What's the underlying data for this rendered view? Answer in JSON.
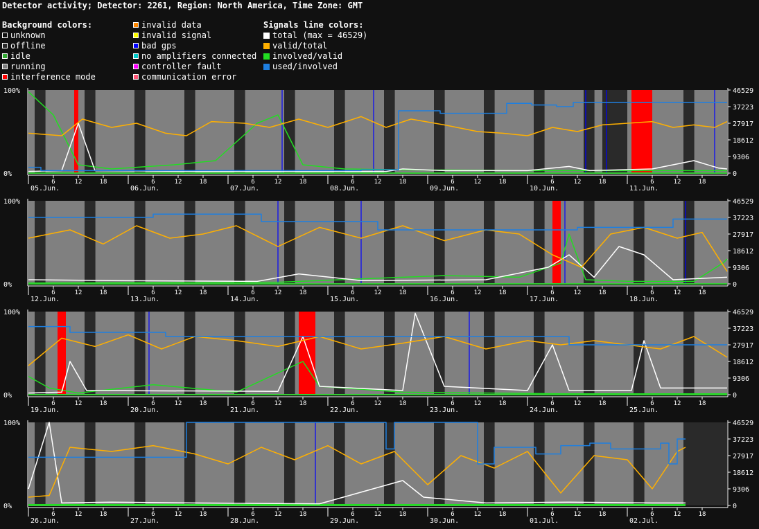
{
  "title": "Detector activity; Detector: 2261, Region: North America, Time Zone: GMT",
  "legend": {
    "background_header": "Background colors:",
    "signals_header": "Signals line colors:",
    "background_col1": [
      {
        "label": "unknown",
        "color": "#111111"
      },
      {
        "label": "offline",
        "color": "#2a2a2a"
      },
      {
        "label": "idle",
        "color": "#33aa33"
      },
      {
        "label": "running",
        "color": "#808080"
      },
      {
        "label": "interference mode",
        "color": "#ff0000"
      }
    ],
    "background_col2": [
      {
        "label": "invalid data",
        "color": "#ff8800"
      },
      {
        "label": "invalid signal",
        "color": "#ffff00"
      },
      {
        "label": "bad gps",
        "color": "#0000ff"
      },
      {
        "label": "no amplifiers connected",
        "color": "#00cccc"
      },
      {
        "label": "controller fault",
        "color": "#ff00ff"
      },
      {
        "label": "communication error",
        "color": "#ff5577"
      }
    ],
    "signals": [
      {
        "label": "total (max = 46529)",
        "color": "#ffffff"
      },
      {
        "label": "valid/total",
        "color": "#ffb000"
      },
      {
        "label": "involved/valid",
        "color": "#22dd22"
      },
      {
        "label": "used/involved",
        "color": "#1e7fe0"
      }
    ]
  },
  "chart_data": {
    "type": "line",
    "y_left_ticks": [
      "100%",
      "0%"
    ],
    "y_right_ticks": [
      "46529",
      "37223",
      "27917",
      "18612",
      "9306",
      "0"
    ],
    "hour_ticks": [
      "6",
      "12",
      "18"
    ],
    "colors": {
      "total": "#ffffff",
      "valid_total": "#ffb000",
      "involved_valid": "#22dd22",
      "used_involved": "#1e7fe0",
      "running": "#808080",
      "offline": "#2a2a2a",
      "interference": "#ff0000",
      "bad_gps": "#0000ff"
    },
    "panels": [
      {
        "days": [
          "05.Jun.",
          "06.Jun.",
          "07.Jun.",
          "08.Jun.",
          "09.Jun.",
          "10.Jun.",
          "11.Jun."
        ],
        "hours": 168,
        "used_involved": [
          [
            0,
            7
          ],
          [
            3,
            7
          ],
          [
            3,
            3
          ],
          [
            80,
            3
          ],
          [
            80,
            4
          ],
          [
            89,
            4
          ],
          [
            89,
            75
          ],
          [
            99,
            75
          ],
          [
            99,
            72
          ],
          [
            115,
            72
          ],
          [
            115,
            84
          ],
          [
            121,
            84
          ],
          [
            121,
            82
          ],
          [
            127,
            82
          ],
          [
            127,
            80
          ],
          [
            131,
            80
          ],
          [
            131,
            85
          ],
          [
            168,
            85
          ]
        ],
        "valid_total": [
          [
            0,
            48
          ],
          [
            8,
            45
          ],
          [
            13,
            65
          ],
          [
            20,
            55
          ],
          [
            26,
            60
          ],
          [
            33,
            48
          ],
          [
            38,
            45
          ],
          [
            44,
            62
          ],
          [
            52,
            60
          ],
          [
            58,
            55
          ],
          [
            65,
            65
          ],
          [
            72,
            55
          ],
          [
            80,
            68
          ],
          [
            86,
            55
          ],
          [
            92,
            65
          ],
          [
            100,
            58
          ],
          [
            108,
            50
          ],
          [
            114,
            48
          ],
          [
            120,
            45
          ],
          [
            126,
            55
          ],
          [
            132,
            50
          ],
          [
            138,
            58
          ],
          [
            144,
            60
          ],
          [
            150,
            62
          ],
          [
            155,
            55
          ],
          [
            160,
            58
          ],
          [
            165,
            55
          ],
          [
            168,
            62
          ]
        ],
        "total": [
          [
            0,
            2
          ],
          [
            8,
            3
          ],
          [
            12,
            60
          ],
          [
            16,
            3
          ],
          [
            40,
            2
          ],
          [
            70,
            2
          ],
          [
            86,
            2
          ],
          [
            90,
            5
          ],
          [
            100,
            3
          ],
          [
            120,
            3
          ],
          [
            130,
            8
          ],
          [
            135,
            3
          ],
          [
            150,
            5
          ],
          [
            160,
            15
          ],
          [
            166,
            6
          ],
          [
            168,
            5
          ]
        ],
        "involved_valid": [
          [
            0,
            98
          ],
          [
            6,
            70
          ],
          [
            12,
            10
          ],
          [
            20,
            5
          ],
          [
            35,
            10
          ],
          [
            45,
            15
          ],
          [
            55,
            60
          ],
          [
            60,
            70
          ],
          [
            66,
            10
          ],
          [
            76,
            5
          ],
          [
            90,
            4
          ],
          [
            120,
            3
          ],
          [
            168,
            3
          ]
        ],
        "interference": [
          [
            11,
            1
          ],
          [
            145,
            5
          ]
        ],
        "offline": [
          [
            138,
            6
          ]
        ],
        "bad_gps": [
          61,
          83,
          134,
          139,
          165
        ]
      },
      {
        "days": [
          "12.Jun.",
          "13.Jun.",
          "14.Jun.",
          "15.Jun.",
          "16.Jun.",
          "17.Jun.",
          "18.Jun."
        ],
        "hours": 168,
        "used_involved": [
          [
            0,
            80
          ],
          [
            30,
            80
          ],
          [
            30,
            84
          ],
          [
            56,
            84
          ],
          [
            56,
            75
          ],
          [
            84,
            75
          ],
          [
            84,
            65
          ],
          [
            132,
            65
          ],
          [
            132,
            68
          ],
          [
            155,
            68
          ],
          [
            155,
            78
          ],
          [
            168,
            78
          ]
        ],
        "valid_total": [
          [
            0,
            55
          ],
          [
            10,
            65
          ],
          [
            18,
            48
          ],
          [
            26,
            70
          ],
          [
            34,
            55
          ],
          [
            42,
            60
          ],
          [
            50,
            70
          ],
          [
            60,
            45
          ],
          [
            70,
            68
          ],
          [
            80,
            55
          ],
          [
            90,
            70
          ],
          [
            100,
            52
          ],
          [
            110,
            65
          ],
          [
            118,
            60
          ],
          [
            126,
            35
          ],
          [
            133,
            20
          ],
          [
            140,
            60
          ],
          [
            148,
            68
          ],
          [
            156,
            55
          ],
          [
            162,
            62
          ],
          [
            168,
            15
          ]
        ],
        "total": [
          [
            0,
            5
          ],
          [
            20,
            4
          ],
          [
            55,
            3
          ],
          [
            65,
            12
          ],
          [
            80,
            4
          ],
          [
            110,
            5
          ],
          [
            125,
            20
          ],
          [
            130,
            35
          ],
          [
            136,
            8
          ],
          [
            142,
            45
          ],
          [
            148,
            35
          ],
          [
            155,
            5
          ],
          [
            168,
            8
          ]
        ],
        "involved_valid": [
          [
            0,
            1
          ],
          [
            60,
            2
          ],
          [
            80,
            6
          ],
          [
            100,
            10
          ],
          [
            118,
            8
          ],
          [
            128,
            25
          ],
          [
            130,
            60
          ],
          [
            134,
            5
          ],
          [
            145,
            3
          ],
          [
            160,
            3
          ],
          [
            167,
            25
          ],
          [
            168,
            30
          ]
        ],
        "interference": [
          [
            126,
            2
          ]
        ],
        "offline": [],
        "bad_gps": [
          60,
          80,
          129,
          158
        ]
      },
      {
        "days": [
          "19.Jun.",
          "20.Jun.",
          "21.Jun.",
          "22.Jun.",
          "23.Jun.",
          "24.Jun.",
          "25.Jun."
        ],
        "hours": 168,
        "used_involved": [
          [
            0,
            82
          ],
          [
            10,
            82
          ],
          [
            10,
            75
          ],
          [
            33,
            75
          ],
          [
            33,
            70
          ],
          [
            130,
            70
          ],
          [
            130,
            60
          ],
          [
            168,
            60
          ]
        ],
        "valid_total": [
          [
            0,
            35
          ],
          [
            8,
            68
          ],
          [
            16,
            58
          ],
          [
            24,
            72
          ],
          [
            32,
            55
          ],
          [
            40,
            70
          ],
          [
            50,
            65
          ],
          [
            60,
            58
          ],
          [
            70,
            70
          ],
          [
            80,
            55
          ],
          [
            90,
            62
          ],
          [
            100,
            70
          ],
          [
            110,
            55
          ],
          [
            120,
            65
          ],
          [
            128,
            60
          ],
          [
            136,
            65
          ],
          [
            144,
            60
          ],
          [
            152,
            55
          ],
          [
            160,
            70
          ],
          [
            168,
            45
          ]
        ],
        "total": [
          [
            0,
            2
          ],
          [
            8,
            3
          ],
          [
            10,
            40
          ],
          [
            14,
            5
          ],
          [
            60,
            4
          ],
          [
            66,
            70
          ],
          [
            70,
            10
          ],
          [
            90,
            5
          ],
          [
            93,
            98
          ],
          [
            100,
            10
          ],
          [
            120,
            5
          ],
          [
            126,
            60
          ],
          [
            130,
            5
          ],
          [
            145,
            5
          ],
          [
            148,
            65
          ],
          [
            152,
            8
          ],
          [
            168,
            8
          ]
        ],
        "involved_valid": [
          [
            0,
            22
          ],
          [
            5,
            8
          ],
          [
            12,
            2
          ],
          [
            30,
            12
          ],
          [
            50,
            3
          ],
          [
            66,
            40
          ],
          [
            70,
            10
          ],
          [
            90,
            3
          ],
          [
            130,
            1
          ],
          [
            168,
            1
          ]
        ],
        "interference": [
          [
            7,
            2
          ],
          [
            65,
            4
          ]
        ],
        "offline": [],
        "bad_gps": [
          29,
          106
        ]
      },
      {
        "days": [
          "26.Jun.",
          "27.Jun.",
          "28.Jun.",
          "29.Jun.",
          "30.Jun.",
          "01.Jul.",
          "02.Jul."
        ],
        "hours": 168,
        "used_involved": [
          [
            0,
            58
          ],
          [
            38,
            58
          ],
          [
            38,
            100
          ],
          [
            86,
            100
          ],
          [
            86,
            68
          ],
          [
            88,
            68
          ],
          [
            88,
            100
          ],
          [
            108,
            100
          ],
          [
            108,
            50
          ],
          [
            112,
            50
          ],
          [
            112,
            70
          ],
          [
            122,
            70
          ],
          [
            122,
            62
          ],
          [
            128,
            62
          ],
          [
            128,
            72
          ],
          [
            135,
            72
          ],
          [
            135,
            75
          ],
          [
            140,
            75
          ],
          [
            140,
            68
          ],
          [
            152,
            68
          ],
          [
            152,
            75
          ],
          [
            154,
            75
          ],
          [
            154,
            50
          ],
          [
            156,
            50
          ],
          [
            156,
            80
          ],
          [
            158,
            80
          ]
        ],
        "valid_total": [
          [
            0,
            10
          ],
          [
            5,
            12
          ],
          [
            10,
            70
          ],
          [
            20,
            65
          ],
          [
            30,
            72
          ],
          [
            40,
            62
          ],
          [
            48,
            50
          ],
          [
            56,
            70
          ],
          [
            64,
            55
          ],
          [
            72,
            72
          ],
          [
            80,
            50
          ],
          [
            88,
            65
          ],
          [
            96,
            25
          ],
          [
            104,
            60
          ],
          [
            112,
            45
          ],
          [
            120,
            65
          ],
          [
            128,
            15
          ],
          [
            136,
            60
          ],
          [
            144,
            55
          ],
          [
            150,
            20
          ],
          [
            156,
            65
          ],
          [
            158,
            70
          ]
        ],
        "total": [
          [
            0,
            20
          ],
          [
            5,
            100
          ],
          [
            8,
            3
          ],
          [
            20,
            4
          ],
          [
            40,
            3
          ],
          [
            70,
            2
          ],
          [
            90,
            30
          ],
          [
            95,
            10
          ],
          [
            110,
            3
          ],
          [
            130,
            4
          ],
          [
            150,
            3
          ],
          [
            158,
            3
          ]
        ],
        "involved_valid": [
          [
            0,
            1
          ],
          [
            158,
            1
          ]
        ],
        "interference": [],
        "offline": [
          [
            158,
            10
          ]
        ],
        "bad_gps": [
          69
        ]
      }
    ]
  }
}
